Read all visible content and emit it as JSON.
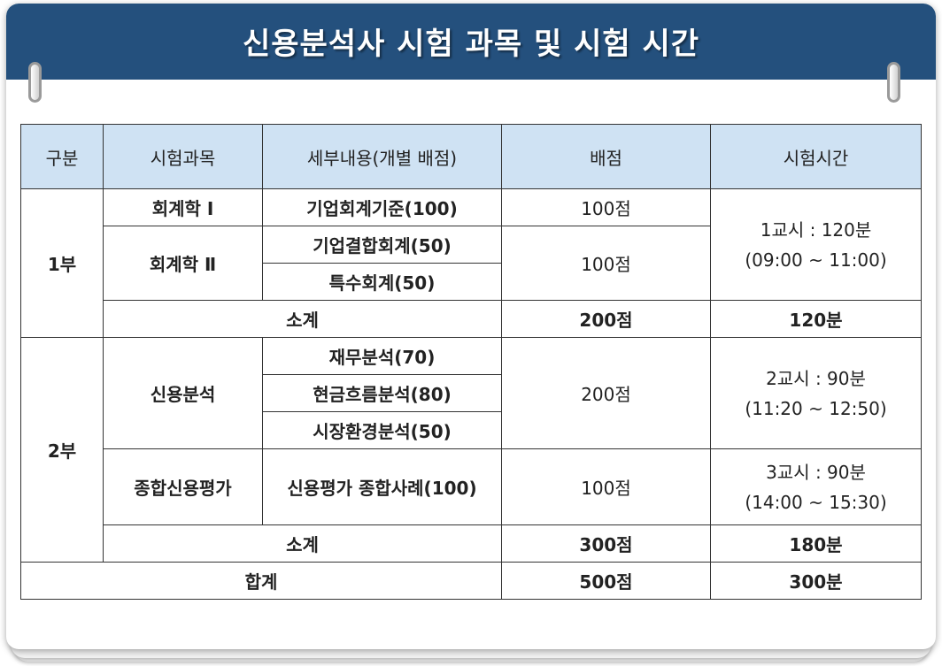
{
  "title": "신용분석사 시험 과목 및 시험 시간",
  "headers": {
    "division": "구분",
    "subject": "시험과목",
    "detail": "세부내용(개별 배점)",
    "score": "배점",
    "time": "시험시간"
  },
  "part1": {
    "label": "1부",
    "acct1": {
      "subject": "회계학 Ⅰ",
      "detail": "기업회계기준(100)",
      "score": "100점"
    },
    "acct2": {
      "subject": "회계학 Ⅱ",
      "details": [
        "기업결합회계(50)",
        "특수회계(50)"
      ],
      "score": "100점"
    },
    "time": [
      "1교시 : 120분",
      "(09:00 ~ 11:00)"
    ],
    "subtotal": {
      "label": "소계",
      "score": "200점",
      "time": "120분"
    }
  },
  "part2": {
    "label": "2부",
    "credit": {
      "subject": "신용분석",
      "details": [
        "재무분석(70)",
        "현금흐름분석(80)",
        "시장환경분석(50)"
      ],
      "score": "200점",
      "time": [
        "2교시 : 90분",
        "(11:20 ~ 12:50)"
      ]
    },
    "comprehensive": {
      "subject": "종합신용평가",
      "detail": "신용평가 종합사례(100)",
      "score": "100점",
      "time": [
        "3교시 : 90분",
        "(14:00 ~ 15:30)"
      ]
    },
    "subtotal": {
      "label": "소계",
      "score": "300점",
      "time": "180분"
    }
  },
  "total": {
    "label": "합계",
    "score": "500점",
    "time": "300분"
  },
  "colors": {
    "header_bg": "#24507d",
    "table_head_bg": "#cfe2f3",
    "subject_text": "#1f6cb5",
    "total_text": "#d00000"
  }
}
